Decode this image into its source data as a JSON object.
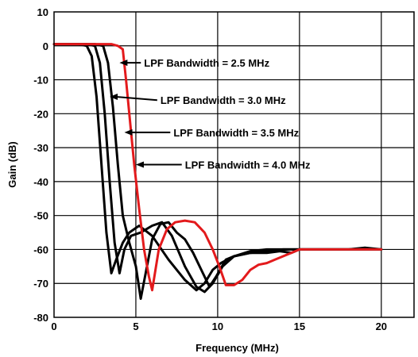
{
  "chart_data": {
    "type": "line",
    "xlabel": "Frequency (MHz)",
    "ylabel": "Gain (dB)",
    "xlim": [
      0,
      22
    ],
    "ylim": [
      -80,
      10
    ],
    "xticks": [
      0,
      5,
      10,
      15,
      20
    ],
    "yticks": [
      10,
      0,
      -10,
      -20,
      -30,
      -40,
      -50,
      -60,
      -70,
      -80
    ],
    "grid": true,
    "series": [
      {
        "color": "#000000",
        "points": [
          [
            0,
            0.5
          ],
          [
            1.5,
            0.5
          ],
          [
            2.0,
            0
          ],
          [
            2.3,
            -3
          ],
          [
            2.6,
            -15
          ],
          [
            2.9,
            -35
          ],
          [
            3.2,
            -55
          ],
          [
            3.5,
            -67
          ],
          [
            3.8,
            -63
          ],
          [
            4.2,
            -58
          ],
          [
            4.6,
            -55
          ],
          [
            5.2,
            -53
          ],
          [
            6.0,
            -56
          ],
          [
            7.0,
            -63
          ],
          [
            8.0,
            -69
          ],
          [
            8.7,
            -72
          ],
          [
            9.2,
            -70
          ],
          [
            9.7,
            -66
          ],
          [
            10.2,
            -64
          ],
          [
            11.0,
            -62
          ],
          [
            12.0,
            -60.5
          ],
          [
            13.0,
            -60
          ],
          [
            14.0,
            -60
          ],
          [
            15.0,
            -60
          ],
          [
            16.0,
            -60
          ],
          [
            18.0,
            -60
          ],
          [
            20.0,
            -60
          ]
        ]
      },
      {
        "color": "#000000",
        "points": [
          [
            0,
            0.5
          ],
          [
            2.0,
            0.5
          ],
          [
            2.5,
            0
          ],
          [
            2.8,
            -5
          ],
          [
            3.1,
            -20
          ],
          [
            3.4,
            -40
          ],
          [
            3.7,
            -58
          ],
          [
            4.0,
            -67
          ],
          [
            4.3,
            -60
          ],
          [
            4.7,
            -56
          ],
          [
            5.3,
            -55
          ],
          [
            6.0,
            -53
          ],
          [
            6.6,
            -52
          ],
          [
            7.2,
            -56
          ],
          [
            8.0,
            -65
          ],
          [
            8.7,
            -71
          ],
          [
            9.2,
            -72.5
          ],
          [
            9.7,
            -70
          ],
          [
            10.3,
            -65
          ],
          [
            11.0,
            -62
          ],
          [
            12.0,
            -61
          ],
          [
            13.0,
            -60.5
          ],
          [
            14.0,
            -60
          ],
          [
            15.0,
            -60
          ],
          [
            17.0,
            -60
          ],
          [
            20.0,
            -60
          ]
        ]
      },
      {
        "color": "#000000",
        "points": [
          [
            0,
            0.5
          ],
          [
            2.5,
            0.5
          ],
          [
            3.0,
            0
          ],
          [
            3.3,
            -5
          ],
          [
            3.6,
            -18
          ],
          [
            3.9,
            -35
          ],
          [
            4.2,
            -50
          ],
          [
            4.6,
            -58
          ],
          [
            5.0,
            -65
          ],
          [
            5.3,
            -74.5
          ],
          [
            5.6,
            -67
          ],
          [
            6.0,
            -57
          ],
          [
            6.5,
            -52.5
          ],
          [
            7.0,
            -52
          ],
          [
            7.5,
            -55
          ],
          [
            8.0,
            -57
          ],
          [
            8.5,
            -61
          ],
          [
            9.0,
            -66
          ],
          [
            9.5,
            -71
          ],
          [
            9.9,
            -68
          ],
          [
            10.5,
            -63
          ],
          [
            11.0,
            -62
          ],
          [
            12.0,
            -61
          ],
          [
            13.0,
            -61
          ],
          [
            13.8,
            -60.5
          ],
          [
            14.5,
            -61
          ],
          [
            15.0,
            -60
          ],
          [
            16.0,
            -60
          ],
          [
            17.0,
            -60
          ],
          [
            18.0,
            -60
          ],
          [
            19.0,
            -59.5
          ],
          [
            20.0,
            -60
          ]
        ]
      },
      {
        "color": "#e31a1c",
        "points": [
          [
            0,
            0.5
          ],
          [
            3.5,
            0.5
          ],
          [
            3.9,
            0
          ],
          [
            4.2,
            -1
          ],
          [
            4.4,
            -10
          ],
          [
            4.6,
            -20
          ],
          [
            4.9,
            -35
          ],
          [
            5.2,
            -48
          ],
          [
            5.5,
            -60
          ],
          [
            5.8,
            -68
          ],
          [
            6.0,
            -72
          ],
          [
            6.4,
            -60
          ],
          [
            6.9,
            -54
          ],
          [
            7.4,
            -52
          ],
          [
            8.0,
            -51.5
          ],
          [
            8.6,
            -52
          ],
          [
            9.2,
            -55
          ],
          [
            9.7,
            -60
          ],
          [
            10.1,
            -65
          ],
          [
            10.5,
            -70.5
          ],
          [
            11.0,
            -70.5
          ],
          [
            11.5,
            -69
          ],
          [
            12.0,
            -66
          ],
          [
            12.5,
            -64.5
          ],
          [
            13.0,
            -64
          ],
          [
            13.5,
            -63
          ],
          [
            14.0,
            -62
          ],
          [
            14.5,
            -61
          ],
          [
            15.0,
            -60
          ],
          [
            16.0,
            -60
          ],
          [
            17.0,
            -60
          ],
          [
            18.0,
            -60
          ],
          [
            20.0,
            -60
          ]
        ]
      }
    ],
    "annotations": [
      {
        "text": "LPF Bandwidth = 2.5 MHz",
        "x": 4.0,
        "y": -5,
        "tx": 5.5,
        "ty": -5
      },
      {
        "text": "LPF Bandwidth = 3.0 MHz",
        "x": 3.4,
        "y": -15,
        "tx": 6.5,
        "ty": -16
      },
      {
        "text": "LPF Bandwidth = 3.5 MHz",
        "x": 4.3,
        "y": -25.5,
        "tx": 7.3,
        "ty": -25.5
      },
      {
        "text": "LPF Bandwidth = 4.0 MHz",
        "x": 5.0,
        "y": -35,
        "tx": 8.0,
        "ty": -35
      }
    ]
  }
}
